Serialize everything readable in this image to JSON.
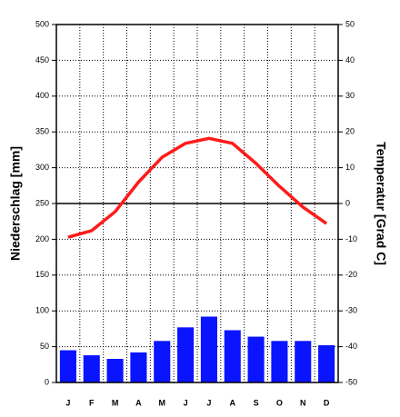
{
  "chart_data": {
    "type": "climate",
    "y_label": "Niederschlag [mm]",
    "y2_label": "Temperatur [Grad C]",
    "categories": [
      "J",
      "F",
      "M",
      "A",
      "M",
      "J",
      "J",
      "A",
      "S",
      "O",
      "N",
      "D"
    ],
    "series": [
      {
        "name": "Niederschlag",
        "kind": "bar",
        "color": "#0a14ff",
        "values": [
          45,
          38,
          33,
          42,
          58,
          77,
          92,
          73,
          64,
          58,
          58,
          52
        ]
      },
      {
        "name": "Temperatur",
        "kind": "line",
        "axis": "y2",
        "color": "#ff1a1a",
        "values": [
          -9.4,
          -7.6,
          -2.3,
          6,
          12.9,
          16.8,
          18.2,
          16.8,
          11.2,
          4.8,
          -1,
          -5.6
        ]
      }
    ],
    "ylim": [
      0,
      500
    ],
    "yticks": [
      0,
      50,
      100,
      150,
      200,
      250,
      300,
      350,
      400,
      450,
      500
    ],
    "y2lim": [
      -50,
      50
    ],
    "y2ticks": [
      -50,
      -40,
      -30,
      -20,
      -10,
      0,
      10,
      20,
      30,
      40,
      50
    ],
    "grid": true
  }
}
